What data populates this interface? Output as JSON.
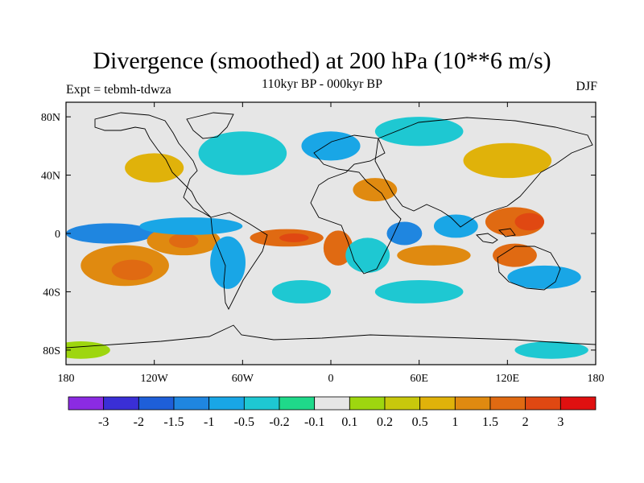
{
  "chart_data": {
    "type": "heatmap",
    "title": "Divergence (smoothed) at 200 hPa (10**6 m/s)",
    "subtitle_center": "110kyr BP - 000kyr BP",
    "subtitle_left": "Expt = tebmh-tdwza",
    "subtitle_right": "DJF",
    "x_axis": {
      "range": [
        -180,
        180
      ],
      "ticks": [
        {
          "value": -180,
          "label": "180"
        },
        {
          "value": -120,
          "label": "120W"
        },
        {
          "value": -60,
          "label": "60W"
        },
        {
          "value": 0,
          "label": "0"
        },
        {
          "value": 60,
          "label": "60E"
        },
        {
          "value": 120,
          "label": "120E"
        },
        {
          "value": 180,
          "label": "180"
        }
      ]
    },
    "y_axis": {
      "range": [
        -90,
        90
      ],
      "ticks": [
        {
          "value": 80,
          "label": "80N"
        },
        {
          "value": 40,
          "label": "40N"
        },
        {
          "value": 0,
          "label": "0"
        },
        {
          "value": -40,
          "label": "40S"
        },
        {
          "value": -80,
          "label": "80S"
        }
      ]
    },
    "colorbar": {
      "colors": [
        "#8b2be2",
        "#3a2fd6",
        "#1e5fd9",
        "#1f86e0",
        "#19a6e6",
        "#1ec8d2",
        "#1fd98a",
        "#e6e6e6",
        "#9ed60f",
        "#c8c80c",
        "#e0b20a",
        "#e08a10",
        "#e06a12",
        "#e04812",
        "#e01010"
      ],
      "labels": [
        "-3",
        "-2",
        "-1.5",
        "-1",
        "-0.5",
        "-0.2",
        "-0.1",
        "0.1",
        "0.2",
        "0.5",
        "1",
        "1.5",
        "2",
        "3"
      ]
    },
    "field_blobs": [
      {
        "lon": -155,
        "lat": -25,
        "rlon": 12,
        "rlat": 8,
        "level": 1
      },
      {
        "lon": -140,
        "lat": -22,
        "rlon": 30,
        "rlat": 14,
        "level": 11
      },
      {
        "lon": -135,
        "lat": -25,
        "rlon": 14,
        "rlat": 7,
        "level": 12
      },
      {
        "lon": -150,
        "lat": 0,
        "rlon": 30,
        "rlat": 7,
        "level": 3
      },
      {
        "lon": -100,
        "lat": -5,
        "rlon": 25,
        "rlat": 10,
        "level": 11
      },
      {
        "lon": -100,
        "lat": -5,
        "rlon": 10,
        "rlat": 5,
        "level": 12
      },
      {
        "lon": -95,
        "lat": 5,
        "rlon": 35,
        "rlat": 6,
        "level": 4
      },
      {
        "lon": -70,
        "lat": -20,
        "rlon": 12,
        "rlat": 18,
        "level": 4
      },
      {
        "lon": -30,
        "lat": -3,
        "rlon": 25,
        "rlat": 6,
        "level": 12
      },
      {
        "lon": -25,
        "lat": -3,
        "rlon": 10,
        "rlat": 3,
        "level": 13
      },
      {
        "lon": 5,
        "lat": -10,
        "rlon": 10,
        "rlat": 12,
        "level": 12
      },
      {
        "lon": 25,
        "lat": -15,
        "rlon": 15,
        "rlat": 12,
        "level": 5
      },
      {
        "lon": 50,
        "lat": 0,
        "rlon": 12,
        "rlat": 8,
        "level": 3
      },
      {
        "lon": 85,
        "lat": 5,
        "rlon": 15,
        "rlat": 8,
        "level": 4
      },
      {
        "lon": 70,
        "lat": -15,
        "rlon": 25,
        "rlat": 7,
        "level": 11
      },
      {
        "lon": 125,
        "lat": 8,
        "rlon": 20,
        "rlat": 10,
        "level": 12
      },
      {
        "lon": 135,
        "lat": 8,
        "rlon": 10,
        "rlat": 6,
        "level": 13
      },
      {
        "lon": 125,
        "lat": -15,
        "rlon": 15,
        "rlat": 8,
        "level": 12
      },
      {
        "lon": 145,
        "lat": -30,
        "rlon": 25,
        "rlat": 8,
        "level": 4
      },
      {
        "lon": -60,
        "lat": 55,
        "rlon": 30,
        "rlat": 15,
        "level": 5
      },
      {
        "lon": -120,
        "lat": 45,
        "rlon": 20,
        "rlat": 10,
        "level": 10
      },
      {
        "lon": 0,
        "lat": 60,
        "rlon": 20,
        "rlat": 10,
        "level": 4
      },
      {
        "lon": 60,
        "lat": 70,
        "rlon": 30,
        "rlat": 10,
        "level": 5
      },
      {
        "lon": 120,
        "lat": 50,
        "rlon": 30,
        "rlat": 12,
        "level": 10
      },
      {
        "lon": 30,
        "lat": 30,
        "rlon": 15,
        "rlat": 8,
        "level": 11
      },
      {
        "lon": -20,
        "lat": -40,
        "rlon": 20,
        "rlat": 8,
        "level": 5
      },
      {
        "lon": 60,
        "lat": -40,
        "rlon": 30,
        "rlat": 8,
        "level": 5
      },
      {
        "lon": -170,
        "lat": -80,
        "rlon": 20,
        "rlat": 6,
        "level": 8
      },
      {
        "lon": 150,
        "lat": -80,
        "rlon": 25,
        "rlat": 6,
        "level": 5
      }
    ]
  }
}
